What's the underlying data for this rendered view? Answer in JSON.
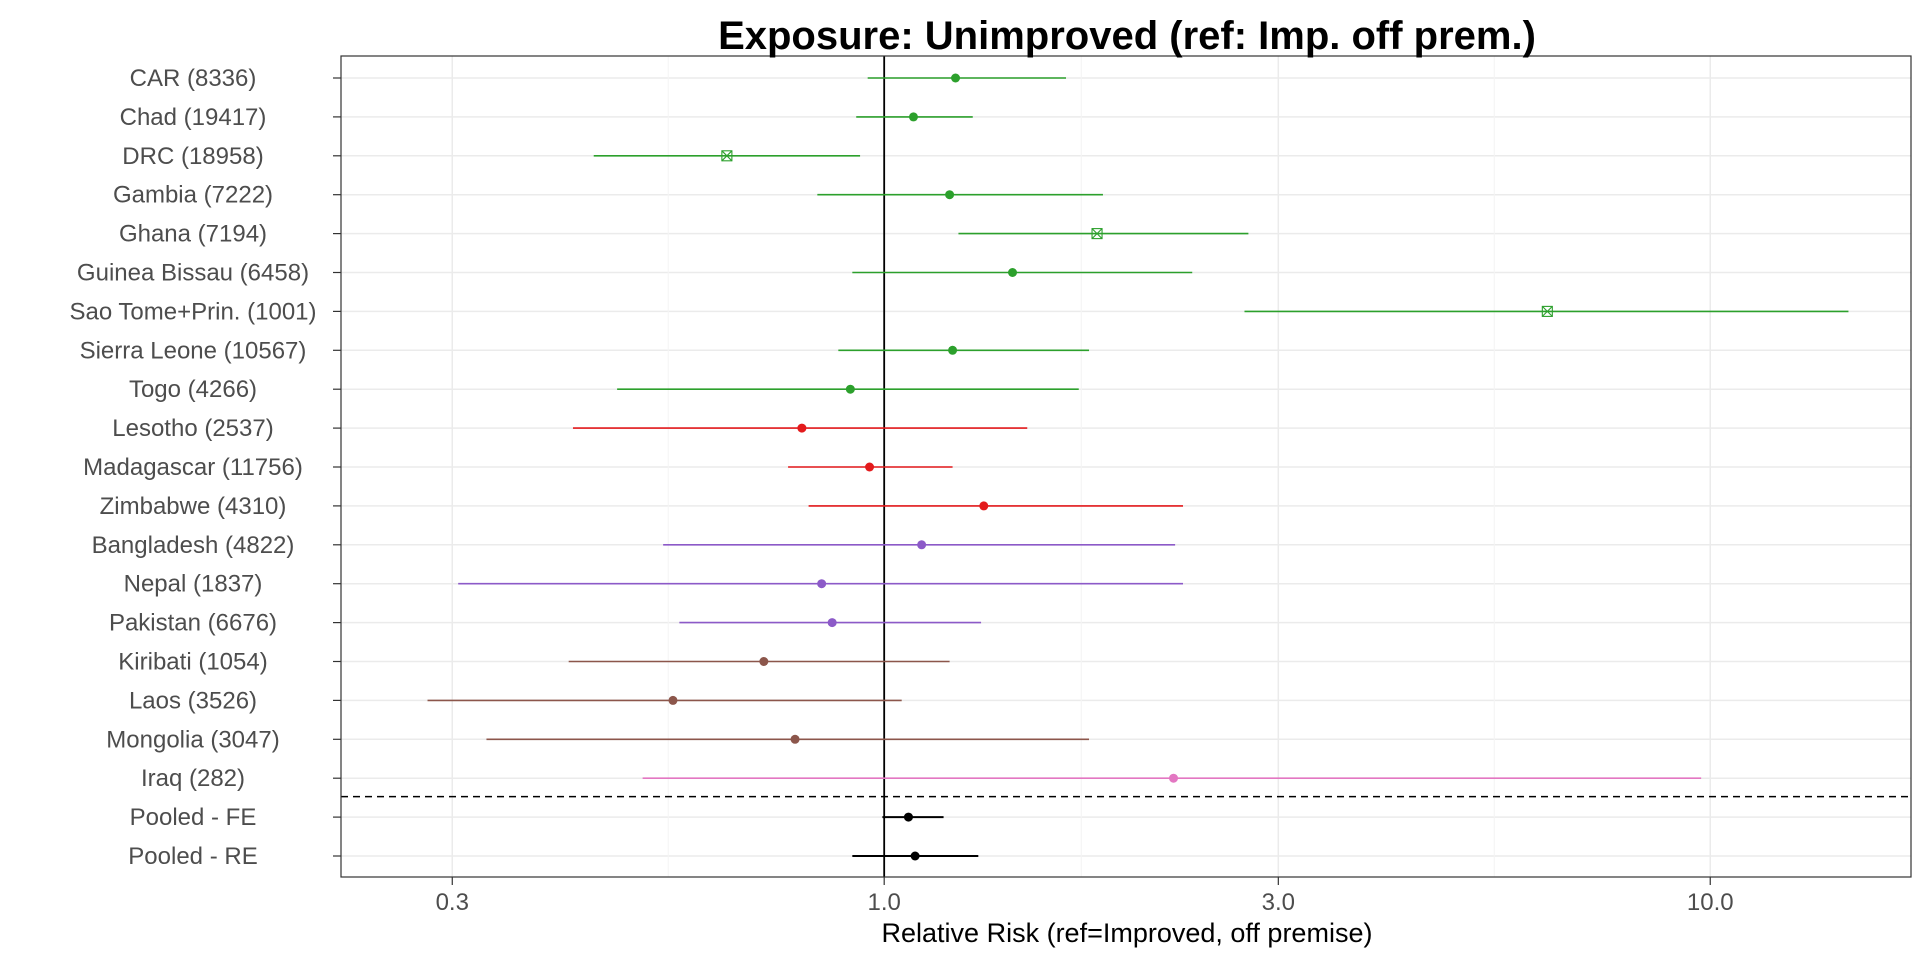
{
  "chart_data": {
    "type": "scatter",
    "subtype": "forest-plot",
    "title": "Exposure: Unimproved (ref: Imp. off prem.)",
    "xlabel": "Relative Risk (ref=Improved, off premise)",
    "ylabel": "",
    "x_scale": "log",
    "xlim": [
      0.22,
      17.5
    ],
    "x_ticks": [
      {
        "value": 0.3,
        "label": "0.3"
      },
      {
        "value": 1.0,
        "label": "1.0"
      },
      {
        "value": 3.0,
        "label": "3.0"
      },
      {
        "value": 10.0,
        "label": "10.0"
      }
    ],
    "reference_line": 1.0,
    "grid": true,
    "separator": "dashed line between Iraq (282) and Pooled - FE",
    "rows": [
      {
        "label": "CAR (8336)",
        "estimate": 1.22,
        "lower": 0.955,
        "upper": 1.66,
        "color": "#2ca02c",
        "marker": "dot"
      },
      {
        "label": "Chad (19417)",
        "estimate": 1.085,
        "lower": 0.925,
        "upper": 1.28,
        "color": "#2ca02c",
        "marker": "dot"
      },
      {
        "label": "DRC (18958)",
        "estimate": 0.645,
        "lower": 0.445,
        "upper": 0.935,
        "color": "#2ca02c",
        "marker": "x"
      },
      {
        "label": "Gambia (7222)",
        "estimate": 1.2,
        "lower": 0.83,
        "upper": 1.84,
        "color": "#2ca02c",
        "marker": "dot"
      },
      {
        "label": "Ghana (7194)",
        "estimate": 1.81,
        "lower": 1.23,
        "upper": 2.76,
        "color": "#2ca02c",
        "marker": "x"
      },
      {
        "label": "Guinea Bissau (6458)",
        "estimate": 1.43,
        "lower": 0.915,
        "upper": 2.36,
        "color": "#2ca02c",
        "marker": "dot"
      },
      {
        "label": "Sao Tome+Prin. (1001)",
        "estimate": 6.35,
        "lower": 2.73,
        "upper": 14.7,
        "color": "#2ca02c",
        "marker": "x"
      },
      {
        "label": "Sierra Leone (10567)",
        "estimate": 1.21,
        "lower": 0.88,
        "upper": 1.77,
        "color": "#2ca02c",
        "marker": "dot"
      },
      {
        "label": "Togo (4266)",
        "estimate": 0.91,
        "lower": 0.475,
        "upper": 1.72,
        "color": "#2ca02c",
        "marker": "dot"
      },
      {
        "label": "Lesotho (2537)",
        "estimate": 0.795,
        "lower": 0.42,
        "upper": 1.49,
        "color": "#e31a1c",
        "marker": "dot"
      },
      {
        "label": "Madagascar (11756)",
        "estimate": 0.96,
        "lower": 0.765,
        "upper": 1.21,
        "color": "#e31a1c",
        "marker": "dot"
      },
      {
        "label": "Zimbabwe (4310)",
        "estimate": 1.32,
        "lower": 0.81,
        "upper": 2.3,
        "color": "#e31a1c",
        "marker": "dot"
      },
      {
        "label": "Bangladesh (4822)",
        "estimate": 1.11,
        "lower": 0.54,
        "upper": 2.25,
        "color": "#8c5ac8",
        "marker": "dot"
      },
      {
        "label": "Nepal (1837)",
        "estimate": 0.84,
        "lower": 0.305,
        "upper": 2.3,
        "color": "#8c5ac8",
        "marker": "dot"
      },
      {
        "label": "Pakistan (6676)",
        "estimate": 0.865,
        "lower": 0.565,
        "upper": 1.31,
        "color": "#8c5ac8",
        "marker": "dot"
      },
      {
        "label": "Kiribati (1054)",
        "estimate": 0.715,
        "lower": 0.415,
        "upper": 1.2,
        "color": "#8c564b",
        "marker": "dot"
      },
      {
        "label": "Laos (3526)",
        "estimate": 0.555,
        "lower": 0.28,
        "upper": 1.05,
        "color": "#8c564b",
        "marker": "dot"
      },
      {
        "label": "Mongolia (3047)",
        "estimate": 0.78,
        "lower": 0.33,
        "upper": 1.77,
        "color": "#8c564b",
        "marker": "dot"
      },
      {
        "label": "Iraq (282)",
        "estimate": 2.24,
        "lower": 0.51,
        "upper": 9.75,
        "color": "#e377c2",
        "marker": "dot"
      },
      {
        "label": "Pooled - FE",
        "estimate": 1.07,
        "lower": 0.995,
        "upper": 1.18,
        "color": "#000000",
        "marker": "dot"
      },
      {
        "label": "Pooled - RE",
        "estimate": 1.09,
        "lower": 0.915,
        "upper": 1.3,
        "color": "#000000",
        "marker": "dot"
      }
    ]
  }
}
